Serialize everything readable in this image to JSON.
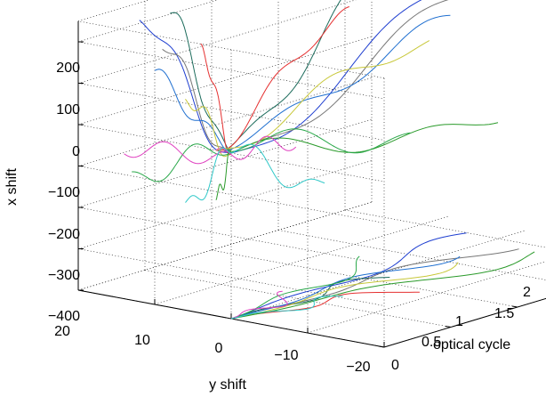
{
  "chart_data": {
    "type": "line3d",
    "xlabel": "optical cycle",
    "ylabel": "y shift",
    "zlabel": "x shift",
    "xlim": [
      0,
      2.2
    ],
    "ylim": [
      -20,
      20
    ],
    "zlim": [
      -400,
      250
    ],
    "x_ticks": [
      "0",
      "0.5",
      "1",
      "1.5",
      "2"
    ],
    "y_ticks": [
      "20",
      "10",
      "0",
      "−10",
      "−20"
    ],
    "z_ticks": [
      "200",
      "100",
      "0",
      "−100",
      "−200",
      "−300",
      "−400"
    ],
    "projections": [
      "x shift vs y shift (back wall)",
      "x shift vs optical cycle (right wall)",
      "y shift vs optical cycle (floor)"
    ],
    "series": [
      {
        "color": "#1f3fd0",
        "t_end": 2.1,
        "xshift_end": 280,
        "yshift_end": 3.0,
        "yshift_wall": 12
      },
      {
        "color": "#1a6a5a",
        "t_end": 1.15,
        "xshift_end": 310,
        "yshift_end": -1.0,
        "yshift_wall": 8
      },
      {
        "color": "#e53030",
        "t_end": 1.0,
        "xshift_end": 250,
        "yshift_end": -6.0,
        "yshift_wall": 4
      },
      {
        "color": "#777777",
        "t_end": 2.0,
        "xshift_end": 220,
        "yshift_end": -2.0,
        "yshift_wall": 9
      },
      {
        "color": "#1f6fd0",
        "t_end": 1.7,
        "xshift_end": 165,
        "yshift_end": 0.0,
        "yshift_wall": 10
      },
      {
        "color": "#c8c83a",
        "t_end": 1.6,
        "xshift_end": 110,
        "yshift_end": -3.0,
        "yshift_wall": 6
      },
      {
        "color": "#2a9a2a",
        "t_end": 2.0,
        "xshift_end": -120,
        "yshift_end": -8.0,
        "yshift_wall": 2
      },
      {
        "color": "#2aa84a",
        "t_end": 1.4,
        "xshift_end": -90,
        "yshift_end": 4.0,
        "yshift_wall": 13
      },
      {
        "color": "#e040c0",
        "t_end": 0.6,
        "xshift_end": -50,
        "yshift_end": 1.0,
        "yshift_wall": 14
      },
      {
        "color": "#30c8c8",
        "t_end": 0.7,
        "xshift_end": -140,
        "yshift_end": -4.0,
        "yshift_wall": 6
      }
    ]
  }
}
